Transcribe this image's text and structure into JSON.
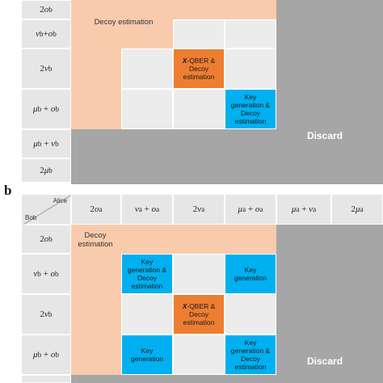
{
  "panel_b_letter": "b",
  "corner": {
    "alice": "Alice",
    "bob": "Bob"
  },
  "top_panel": {
    "row_headers": [
      "2o_b",
      "ν_b+o_b",
      "2ν_b",
      "μ_b + o_b",
      "μ_b + ν_b",
      "2μ_b"
    ],
    "decoy_label": "Decoy estimation",
    "xqber_label": "X-QBER & Decoy estimation",
    "keygen_decoy_label": "Key generation & Decoy estimation",
    "discard_label": "Discard"
  },
  "bottom_panel": {
    "col_headers": [
      "2o_a",
      "ν_a + o_a",
      "2ν_a",
      "μ_a + o_a",
      "μ_a + ν_a",
      "2μ_a"
    ],
    "row_headers": [
      "2o_b",
      "ν_b + o_b",
      "2ν_b",
      "μ_b + o_b"
    ],
    "decoy_label": "Decoy estimation",
    "keygen_decoy_label_1": "Key generation & Decoy estimation",
    "keygen_label_1": "Key generation",
    "xqber_label": "X-QBER & Decoy estimation",
    "keygen_label_2": "Key generation",
    "keygen_decoy_label_2": "Key generation & Decoy estimation",
    "discard_label": "Discard"
  }
}
